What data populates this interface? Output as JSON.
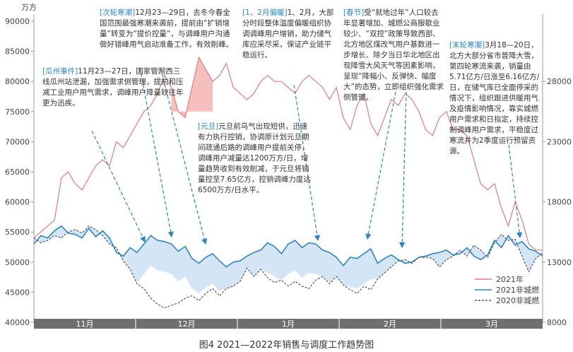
{
  "axes": {
    "left_unit": "万方",
    "left_ticks": [
      90000,
      85000,
      80000,
      75000,
      70000,
      65000,
      60000,
      55000,
      50000,
      45000,
      40000
    ],
    "right_ticks": [
      28000,
      23000,
      18000,
      13000,
      8000
    ]
  },
  "months": [
    "11月",
    "12月",
    "1月",
    "2月",
    "3月"
  ],
  "caption": "图4 2021—2022年销售与调度工作趋势图",
  "annotations": [
    {
      "tag": "[瓜州事件]",
      "text": "11月23—27日，国家管网西三线瓜州站泄漏，加强需求侧管理，提前和压减工业用户用气需求，调峰用户降量较往年更为迅疾。"
    },
    {
      "tag": "[次轮寒潮]",
      "text": "12月23—29日，去冬今春全国范围最强寒潮来袭前，提前由“扩销增量”转变为“提价控量”，与调峰用户沟通做好错峰用气启动准备工作，有效削峰。"
    },
    {
      "tag": "[1、2月偏暖]",
      "text": "1、2月，大部分时段整体温度偏暖组织协调调峰用户增销，助力储气库应采尽采，保证产业链平稳运行。"
    },
    {
      "tag": "[春节]",
      "text": "受“就地过年”人口较去年显著增加、城燃公商服歇业较少、“双控”政策导致西部、北方地区煤改气用户基数进一步增长、除夕当日华北地区出现降雪大风天气等因素影响，呈现“降幅小、反弹快、幅度大”的态势，立即组织强化需求侧管理。"
    },
    {
      "tag": "[元旦]",
      "text": "元旦前乌气出现短供，迅速有力执行控销，协调原计划元旦期间疏通后路的调峰用户提前关停，调峰用户减量达1200万方/日，增量趋势收到有效削减，于元旦将销量控至7.65亿方，控销调峰力度达6500万方/日水平。"
    },
    {
      "tag": "[末轮寒潮]",
      "text": "3月18—20日，北方大部分省市普降大雪，第四轮寒流来袭，销量由5.71亿方/日涨至6.16亿方/日，在储气库已全面停采的情况下，组织跟进供暖用气及疫情影响情况，靠实城燃用户需求和日指定，持续控制调峰用户需求，平稳度过寒流并为2季度运行预留资源。"
    }
  ],
  "chart_data": {
    "type": "line",
    "ylim": [
      40000,
      90000
    ],
    "y2lim": [
      8000,
      33000
    ],
    "series": [
      {
        "name": "2021年",
        "color": "#e57a80",
        "axis": "left",
        "values": [
          54000,
          55000,
          56000,
          57000,
          64000,
          65000,
          63000,
          62000,
          64000,
          66000,
          67000,
          66000,
          70000,
          69000,
          71000,
          73000,
          75000,
          76000,
          78000,
          81000,
          79000,
          75000,
          74000,
          79000,
          84000,
          82000,
          80000,
          81000,
          83000,
          79000,
          78000,
          77000,
          78000,
          80000,
          81000,
          80000,
          80000,
          79000,
          78000,
          80000,
          81000,
          80000,
          79000,
          77000,
          79000,
          74000,
          72000,
          76000,
          78000,
          73000,
          71000,
          74000,
          77000,
          76000,
          78000,
          77000,
          75000,
          72000,
          71000,
          74000,
          75000,
          72000,
          72000,
          71000,
          67000,
          63000,
          62000,
          63000,
          59000,
          56000,
          60000,
          57000,
          53000,
          52000,
          52000
        ]
      },
      {
        "name": "2021非城燃",
        "color": "#2b86c5",
        "axis": "right",
        "values": [
          14500,
          15200,
          15000,
          15600,
          16000,
          15400,
          15300,
          15000,
          15800,
          15100,
          15600,
          15000,
          13800,
          13500,
          14200,
          13800,
          14500,
          15200,
          14800,
          14700,
          14500,
          13900,
          14300,
          13300,
          12900,
          13400,
          13700,
          13100,
          12600,
          13000,
          13100,
          13500,
          13800,
          14000,
          14600,
          14300,
          13700,
          14500,
          14800,
          14200,
          14600,
          14500,
          14000,
          13800,
          13400,
          12700,
          13400,
          13300,
          13700,
          14100,
          12900,
          13300,
          13600,
          13200,
          12900,
          13000,
          13400,
          13500,
          13700,
          13800,
          14000,
          13600,
          13700,
          14200,
          13500,
          13200,
          13600,
          14800,
          14200,
          15200,
          14400,
          14700,
          14100,
          13900,
          13500
        ]
      },
      {
        "name": "2020非城燃",
        "color": "#555555",
        "axis": "right",
        "values": [
          15000,
          14600,
          14800,
          15200,
          15000,
          15500,
          15700,
          15400,
          16000,
          15700,
          15200,
          14500,
          14200,
          13100,
          12400,
          11200,
          10800,
          10000,
          9500,
          9200,
          9400,
          9600,
          10000,
          10200,
          9800,
          10400,
          10800,
          10200,
          10800,
          11000,
          11400,
          12500,
          11800,
          12400,
          11700,
          11300,
          11500,
          11000,
          11400,
          11000,
          10800,
          11500,
          11800,
          11200,
          11800,
          11100,
          10700,
          10400,
          11000,
          10700,
          11600,
          12100,
          12600,
          13100,
          13200,
          12900,
          13400,
          13400,
          13300,
          12600,
          13200,
          13500,
          14000,
          13500,
          14400,
          14000,
          13400,
          14600,
          15300,
          14800,
          14900,
          13500,
          12200,
          13300,
          13800
        ]
      }
    ],
    "legend": "bottom-right"
  },
  "colors": {
    "month_band": "#6f6f6f",
    "area_fill": "#9fc8e8",
    "area_fill_red": "#f4a3a3"
  }
}
